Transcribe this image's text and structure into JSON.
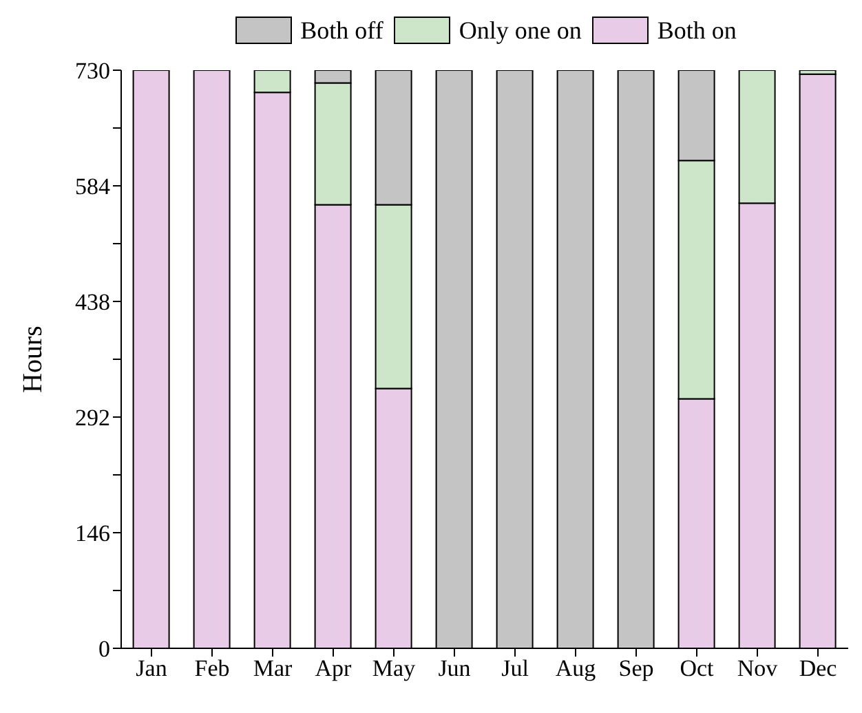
{
  "chart_data": {
    "type": "bar",
    "stacked": true,
    "ylabel": "Hours",
    "categories": [
      "Jan",
      "Feb",
      "Mar",
      "Apr",
      "May",
      "Jun",
      "Jul",
      "Aug",
      "Sep",
      "Oct",
      "Nov",
      "Dec"
    ],
    "series": [
      {
        "name": "Both on",
        "color": "#e8cbe6",
        "values": [
          730,
          730,
          702,
          560,
          328,
          0,
          0,
          0,
          0,
          315,
          562,
          725
        ]
      },
      {
        "name": "Only one on",
        "color": "#cde6c9",
        "values": [
          0,
          0,
          28,
          154,
          232,
          0,
          0,
          0,
          0,
          301,
          168,
          5
        ]
      },
      {
        "name": "Both off",
        "color": "#c4c4c4",
        "values": [
          0,
          0,
          0,
          16,
          170,
          730,
          730,
          730,
          730,
          114,
          0,
          0
        ]
      }
    ],
    "ylim": [
      0,
      730
    ],
    "yticks": [
      0,
      {
        "value": 73,
        "label": null
      },
      146,
      {
        "value": 219,
        "label": null
      },
      292,
      {
        "value": 365,
        "label": null
      },
      438,
      {
        "value": 511,
        "label": null
      },
      584,
      {
        "value": 657,
        "label": null
      },
      730
    ],
    "legend": "top"
  }
}
